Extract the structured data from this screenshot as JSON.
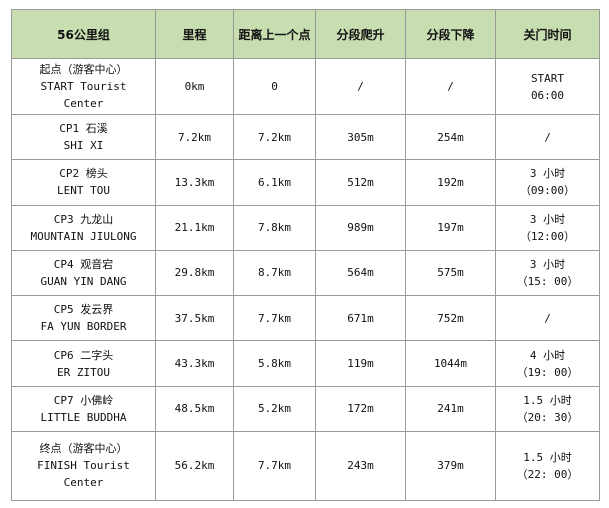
{
  "table": {
    "headers": {
      "checkpoint": "56公里组",
      "distance": "里程",
      "from_prev": "距离上一个点",
      "ascent": "分段爬升",
      "descent": "分段下降",
      "cutoff": "关门时间"
    },
    "rows": [
      {
        "name_lines": [
          "起点（游客中心）",
          "START Tourist",
          "Center"
        ],
        "distance": "0km",
        "from_prev": "0",
        "ascent": "/",
        "descent": "/",
        "cutoff_lines": [
          "START",
          "06:00"
        ]
      },
      {
        "name_lines": [
          "CP1 石溪",
          "SHI XI"
        ],
        "distance": "7.2km",
        "from_prev": "7.2km",
        "ascent": "305m",
        "descent": "254m",
        "cutoff_lines": [
          "/"
        ]
      },
      {
        "name_lines": [
          "CP2 榜头",
          "LENT TOU"
        ],
        "distance": "13.3km",
        "from_prev": "6.1km",
        "ascent": "512m",
        "descent": "192m",
        "cutoff_lines": [
          "3 小时",
          "（09:00）"
        ]
      },
      {
        "name_lines": [
          "CP3 九龙山",
          "MOUNTAIN JIULONG"
        ],
        "distance": "21.1km",
        "from_prev": "7.8km",
        "ascent": "989m",
        "descent": "197m",
        "cutoff_lines": [
          "3 小时",
          "（12:00）"
        ]
      },
      {
        "name_lines": [
          "CP4 观音宕",
          "GUAN YIN DANG"
        ],
        "distance": "29.8km",
        "from_prev": "8.7km",
        "ascent": "564m",
        "descent": "575m",
        "cutoff_lines": [
          "3 小时",
          "（15: 00）"
        ]
      },
      {
        "name_lines": [
          "CP5 发云界",
          "FA YUN BORDER"
        ],
        "distance": "37.5km",
        "from_prev": "7.7km",
        "ascent": "671m",
        "descent": "752m",
        "cutoff_lines": [
          "/"
        ]
      },
      {
        "name_lines": [
          "CP6 二字头",
          "ER ZITOU"
        ],
        "distance": "43.3km",
        "from_prev": "5.8km",
        "ascent": "119m",
        "descent": "1044m",
        "cutoff_lines": [
          "4 小时",
          "（19: 00）"
        ]
      },
      {
        "name_lines": [
          "CP7 小佛岭",
          "LITTLE BUDDHA"
        ],
        "distance": "48.5km",
        "from_prev": "5.2km",
        "ascent": "172m",
        "descent": "241m",
        "cutoff_lines": [
          "1.5 小时",
          "（20: 30）"
        ]
      },
      {
        "name_lines": [
          "终点（游客中心）",
          "FINISH Tourist",
          "Center"
        ],
        "distance": "56.2km",
        "from_prev": "7.7km",
        "ascent": "243m",
        "descent": "379m",
        "cutoff_lines": [
          "1.5 小时",
          "（22: 00）"
        ]
      }
    ]
  },
  "colors": {
    "header_bg": "#c8ddb0",
    "border": "#9a9a9a",
    "text": "#111111"
  }
}
